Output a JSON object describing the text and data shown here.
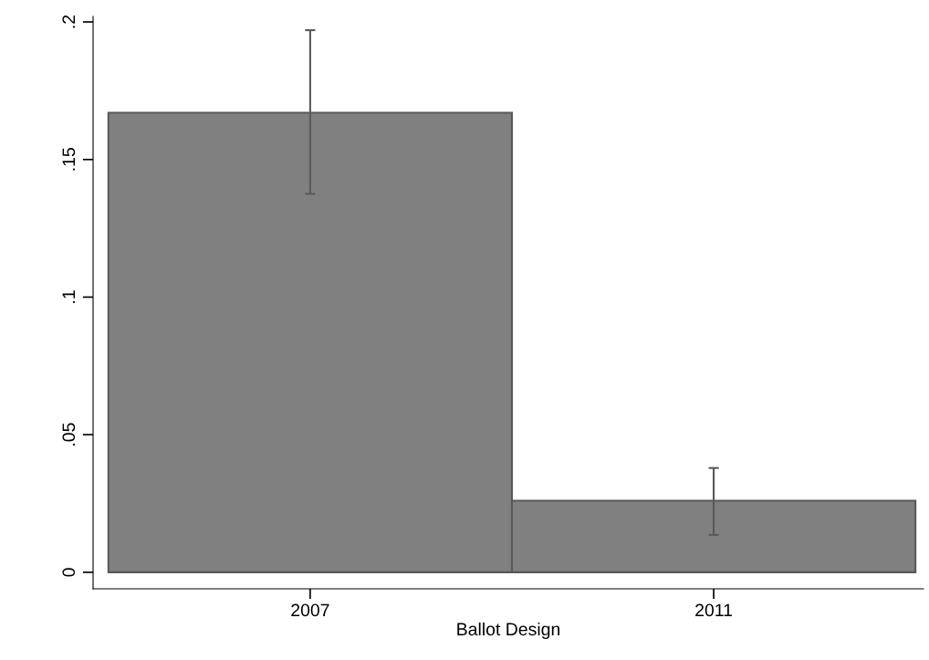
{
  "chart_data": {
    "type": "bar",
    "xlabel": "Ballot Design",
    "categories": [
      "2007",
      "2011"
    ],
    "values": [
      0.167,
      0.026
    ],
    "errors": [
      [
        0.1375,
        0.197
      ],
      [
        0.0136,
        0.0379
      ]
    ],
    "color": "#808080",
    "ylim": [
      -0.006,
      0.202
    ],
    "yticks": [
      {
        "value": 0,
        "label": "0"
      },
      {
        "value": 0.05,
        "label": ".05"
      },
      {
        "value": 0.1,
        "label": ".1"
      },
      {
        "value": 0.15,
        "label": ".15"
      },
      {
        "value": 0.2,
        "label": ".2"
      }
    ],
    "grid": false,
    "legend": false
  }
}
